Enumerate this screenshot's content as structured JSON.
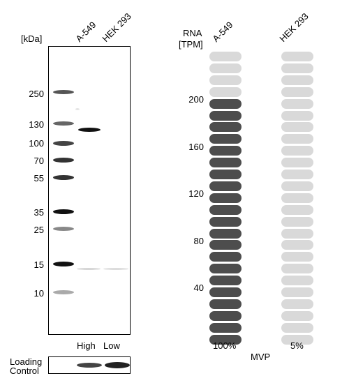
{
  "blot": {
    "unit_label": "[kDa]",
    "lanes": [
      "A-549",
      "HEK 293"
    ],
    "markers": [
      "250",
      "130",
      "100",
      "70",
      "55",
      "35",
      "25",
      "15",
      "10"
    ],
    "load_labels": [
      "High",
      "Low"
    ],
    "loading_control_line1": "Loading",
    "loading_control_line2": "Control"
  },
  "rna": {
    "header_line1": "RNA",
    "header_line2": "[TPM]",
    "columns": [
      "A-549",
      "HEK 293"
    ],
    "ticks": [
      "200",
      "160",
      "120",
      "80",
      "40"
    ],
    "percentages": [
      "100%",
      "5%"
    ],
    "gene": "MVP",
    "a549_filled_segments": 21,
    "hek293_filled_segments": 0,
    "total_segments": 25,
    "colors": {
      "filled": "#4d4d4d",
      "empty": "#d9d9d9"
    }
  }
}
